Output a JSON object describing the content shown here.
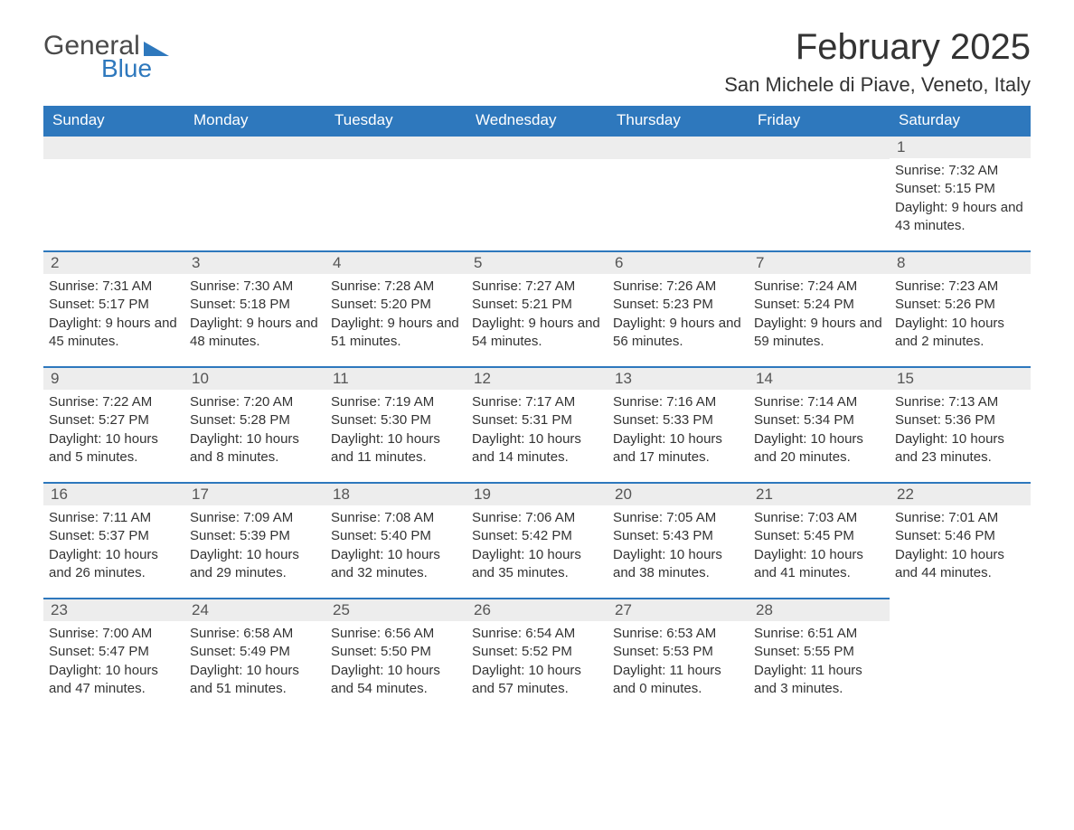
{
  "brand": {
    "part1": "General",
    "part2": "Blue",
    "accent_color": "#2e78bd",
    "text_color": "#4a4a4a"
  },
  "title": "February 2025",
  "location": "San Michele di Piave, Veneto, Italy",
  "colors": {
    "header_bg": "#2e78bd",
    "header_text": "#ffffff",
    "daynum_bg": "#ededed",
    "row_divider": "#2e78bd",
    "body_text": "#333333",
    "page_bg": "#ffffff"
  },
  "typography": {
    "title_fontsize": 40,
    "location_fontsize": 22,
    "header_fontsize": 17,
    "daynum_fontsize": 17,
    "body_fontsize": 15,
    "font_family": "Segoe UI"
  },
  "layout": {
    "columns": 7,
    "rows": 5,
    "first_day_index": 6
  },
  "weekdays": [
    "Sunday",
    "Monday",
    "Tuesday",
    "Wednesday",
    "Thursday",
    "Friday",
    "Saturday"
  ],
  "days": [
    {
      "n": 1,
      "sunrise": "Sunrise: 7:32 AM",
      "sunset": "Sunset: 5:15 PM",
      "daylight": "Daylight: 9 hours and 43 minutes."
    },
    {
      "n": 2,
      "sunrise": "Sunrise: 7:31 AM",
      "sunset": "Sunset: 5:17 PM",
      "daylight": "Daylight: 9 hours and 45 minutes."
    },
    {
      "n": 3,
      "sunrise": "Sunrise: 7:30 AM",
      "sunset": "Sunset: 5:18 PM",
      "daylight": "Daylight: 9 hours and 48 minutes."
    },
    {
      "n": 4,
      "sunrise": "Sunrise: 7:28 AM",
      "sunset": "Sunset: 5:20 PM",
      "daylight": "Daylight: 9 hours and 51 minutes."
    },
    {
      "n": 5,
      "sunrise": "Sunrise: 7:27 AM",
      "sunset": "Sunset: 5:21 PM",
      "daylight": "Daylight: 9 hours and 54 minutes."
    },
    {
      "n": 6,
      "sunrise": "Sunrise: 7:26 AM",
      "sunset": "Sunset: 5:23 PM",
      "daylight": "Daylight: 9 hours and 56 minutes."
    },
    {
      "n": 7,
      "sunrise": "Sunrise: 7:24 AM",
      "sunset": "Sunset: 5:24 PM",
      "daylight": "Daylight: 9 hours and 59 minutes."
    },
    {
      "n": 8,
      "sunrise": "Sunrise: 7:23 AM",
      "sunset": "Sunset: 5:26 PM",
      "daylight": "Daylight: 10 hours and 2 minutes."
    },
    {
      "n": 9,
      "sunrise": "Sunrise: 7:22 AM",
      "sunset": "Sunset: 5:27 PM",
      "daylight": "Daylight: 10 hours and 5 minutes."
    },
    {
      "n": 10,
      "sunrise": "Sunrise: 7:20 AM",
      "sunset": "Sunset: 5:28 PM",
      "daylight": "Daylight: 10 hours and 8 minutes."
    },
    {
      "n": 11,
      "sunrise": "Sunrise: 7:19 AM",
      "sunset": "Sunset: 5:30 PM",
      "daylight": "Daylight: 10 hours and 11 minutes."
    },
    {
      "n": 12,
      "sunrise": "Sunrise: 7:17 AM",
      "sunset": "Sunset: 5:31 PM",
      "daylight": "Daylight: 10 hours and 14 minutes."
    },
    {
      "n": 13,
      "sunrise": "Sunrise: 7:16 AM",
      "sunset": "Sunset: 5:33 PM",
      "daylight": "Daylight: 10 hours and 17 minutes."
    },
    {
      "n": 14,
      "sunrise": "Sunrise: 7:14 AM",
      "sunset": "Sunset: 5:34 PM",
      "daylight": "Daylight: 10 hours and 20 minutes."
    },
    {
      "n": 15,
      "sunrise": "Sunrise: 7:13 AM",
      "sunset": "Sunset: 5:36 PM",
      "daylight": "Daylight: 10 hours and 23 minutes."
    },
    {
      "n": 16,
      "sunrise": "Sunrise: 7:11 AM",
      "sunset": "Sunset: 5:37 PM",
      "daylight": "Daylight: 10 hours and 26 minutes."
    },
    {
      "n": 17,
      "sunrise": "Sunrise: 7:09 AM",
      "sunset": "Sunset: 5:39 PM",
      "daylight": "Daylight: 10 hours and 29 minutes."
    },
    {
      "n": 18,
      "sunrise": "Sunrise: 7:08 AM",
      "sunset": "Sunset: 5:40 PM",
      "daylight": "Daylight: 10 hours and 32 minutes."
    },
    {
      "n": 19,
      "sunrise": "Sunrise: 7:06 AM",
      "sunset": "Sunset: 5:42 PM",
      "daylight": "Daylight: 10 hours and 35 minutes."
    },
    {
      "n": 20,
      "sunrise": "Sunrise: 7:05 AM",
      "sunset": "Sunset: 5:43 PM",
      "daylight": "Daylight: 10 hours and 38 minutes."
    },
    {
      "n": 21,
      "sunrise": "Sunrise: 7:03 AM",
      "sunset": "Sunset: 5:45 PM",
      "daylight": "Daylight: 10 hours and 41 minutes."
    },
    {
      "n": 22,
      "sunrise": "Sunrise: 7:01 AM",
      "sunset": "Sunset: 5:46 PM",
      "daylight": "Daylight: 10 hours and 44 minutes."
    },
    {
      "n": 23,
      "sunrise": "Sunrise: 7:00 AM",
      "sunset": "Sunset: 5:47 PM",
      "daylight": "Daylight: 10 hours and 47 minutes."
    },
    {
      "n": 24,
      "sunrise": "Sunrise: 6:58 AM",
      "sunset": "Sunset: 5:49 PM",
      "daylight": "Daylight: 10 hours and 51 minutes."
    },
    {
      "n": 25,
      "sunrise": "Sunrise: 6:56 AM",
      "sunset": "Sunset: 5:50 PM",
      "daylight": "Daylight: 10 hours and 54 minutes."
    },
    {
      "n": 26,
      "sunrise": "Sunrise: 6:54 AM",
      "sunset": "Sunset: 5:52 PM",
      "daylight": "Daylight: 10 hours and 57 minutes."
    },
    {
      "n": 27,
      "sunrise": "Sunrise: 6:53 AM",
      "sunset": "Sunset: 5:53 PM",
      "daylight": "Daylight: 11 hours and 0 minutes."
    },
    {
      "n": 28,
      "sunrise": "Sunrise: 6:51 AM",
      "sunset": "Sunset: 5:55 PM",
      "daylight": "Daylight: 11 hours and 3 minutes."
    }
  ]
}
